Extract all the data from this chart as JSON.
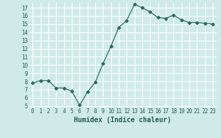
{
  "x": [
    0,
    1,
    2,
    3,
    4,
    5,
    6,
    7,
    8,
    9,
    10,
    11,
    12,
    13,
    14,
    15,
    16,
    17,
    18,
    19,
    20,
    21,
    22,
    23
  ],
  "y": [
    7.8,
    8.1,
    8.1,
    7.2,
    7.2,
    6.8,
    5.1,
    6.7,
    7.9,
    10.2,
    12.3,
    14.6,
    15.4,
    17.4,
    17.0,
    16.5,
    15.8,
    15.7,
    16.1,
    15.5,
    15.2,
    15.2,
    15.1,
    15.0
  ],
  "xlabel": "Humidex (Indice chaleur)",
  "ylim": [
    4.8,
    17.6
  ],
  "xlim": [
    -0.5,
    23.5
  ],
  "yticks": [
    5,
    6,
    7,
    8,
    9,
    10,
    11,
    12,
    13,
    14,
    15,
    16,
    17
  ],
  "xticks": [
    0,
    1,
    2,
    3,
    4,
    5,
    6,
    7,
    8,
    9,
    10,
    11,
    12,
    13,
    14,
    15,
    16,
    17,
    18,
    19,
    20,
    21,
    22,
    23
  ],
  "line_color": "#2a6b5e",
  "marker": "D",
  "marker_size": 2.2,
  "bg_color": "#d0ebe7",
  "grid_color": "#ffffff",
  "label_color": "#1e5c50",
  "tick_label_fontsize": 5.5,
  "xlabel_fontsize": 7.0
}
